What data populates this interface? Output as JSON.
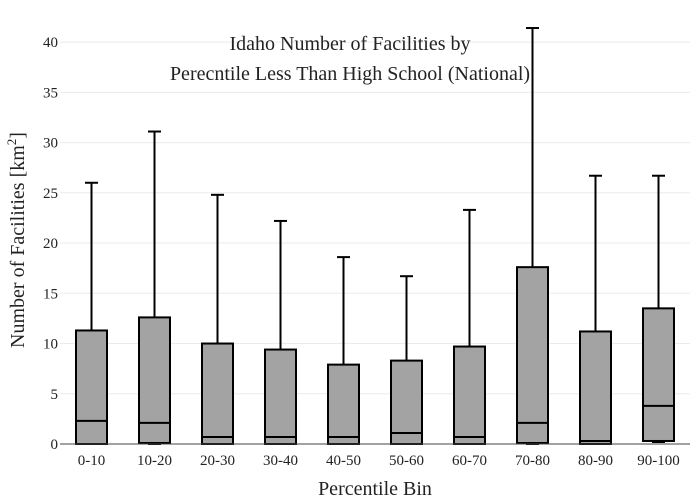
{
  "chart_data": {
    "type": "box",
    "title_lines": [
      "Idaho Number of Facilities by",
      "Perecntile Less Than High School (National)"
    ],
    "xlabel": "Percentile Bin",
    "ylabel_main": "Number of Facilities  [km",
    "ylabel_sup": "2",
    "ylabel_end": "]",
    "ylim": [
      0,
      42
    ],
    "yticks": [
      0,
      5,
      10,
      15,
      20,
      25,
      30,
      35,
      40
    ],
    "ytick_labels": [
      "0",
      "5",
      "10",
      "15",
      "20",
      "25",
      "30",
      "35",
      "40"
    ],
    "categories": [
      "0-10",
      "10-20",
      "20-30",
      "30-40",
      "40-50",
      "50-60",
      "60-70",
      "70-80",
      "80-90",
      "90-100"
    ],
    "box_fill": "#a3a3a3",
    "line_color": "#000000",
    "boxes": [
      {
        "min": 0,
        "q1": 0.0,
        "median": 2.3,
        "q3": 11.3,
        "max": 26.0
      },
      {
        "min": 0,
        "q1": 0.1,
        "median": 2.1,
        "q3": 12.6,
        "max": 31.1
      },
      {
        "min": 0,
        "q1": 0.0,
        "median": 0.7,
        "q3": 10.0,
        "max": 24.8
      },
      {
        "min": 0,
        "q1": 0.0,
        "median": 0.7,
        "q3": 9.4,
        "max": 22.2
      },
      {
        "min": 0,
        "q1": 0.0,
        "median": 0.7,
        "q3": 7.9,
        "max": 18.6
      },
      {
        "min": 0,
        "q1": 0.0,
        "median": 1.1,
        "q3": 8.3,
        "max": 16.7
      },
      {
        "min": 0,
        "q1": 0.0,
        "median": 0.7,
        "q3": 9.7,
        "max": 23.3
      },
      {
        "min": 0,
        "q1": 0.1,
        "median": 2.1,
        "q3": 17.6,
        "max": 41.4
      },
      {
        "min": 0,
        "q1": 0.0,
        "median": 0.3,
        "q3": 11.2,
        "max": 26.7
      },
      {
        "min": 0.2,
        "q1": 0.3,
        "median": 3.8,
        "q3": 13.5,
        "max": 26.7
      }
    ]
  }
}
